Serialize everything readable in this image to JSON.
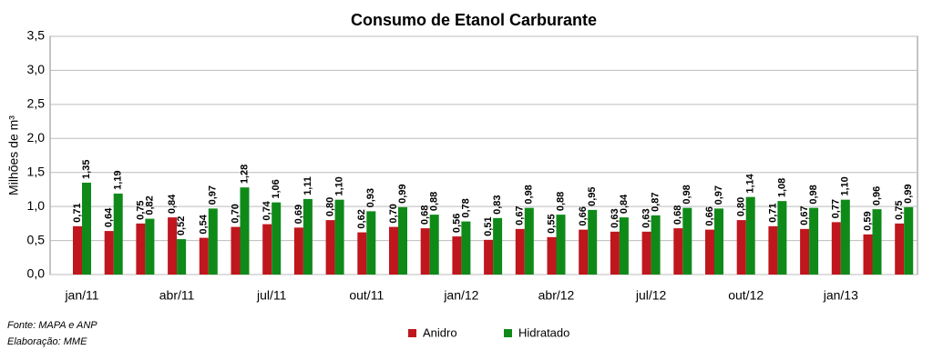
{
  "chart_data": {
    "type": "bar",
    "title": "Consumo de Etanol Carburante",
    "y_label": "Milhões de m³",
    "categories": [
      "jan/11",
      null,
      null,
      "abr/11",
      null,
      null,
      "jul/11",
      null,
      null,
      "out/11",
      null,
      null,
      "jan/12",
      null,
      null,
      "abr/12",
      null,
      null,
      "jul/12",
      null,
      null,
      "out/12",
      null,
      null,
      "jan/13",
      null,
      null
    ],
    "series": [
      {
        "name": "Anidro",
        "color": "#c0161d",
        "values": [
          0.71,
          0.64,
          0.75,
          0.84,
          0.54,
          0.7,
          0.74,
          0.69,
          0.8,
          0.62,
          0.7,
          0.68,
          0.56,
          0.51,
          0.67,
          0.55,
          0.66,
          0.63,
          0.63,
          0.68,
          0.66,
          0.8,
          0.71,
          0.67,
          0.77,
          0.59,
          0.75
        ],
        "value_labels": [
          "0,71",
          "0,64",
          "0,75",
          "0,84",
          "0,54",
          "0,70",
          "0,74",
          "0,69",
          "0,80",
          "0,62",
          "0,70",
          "0,68",
          "0,56",
          "0,51",
          "0,67",
          "0,55",
          "0,66",
          "0,63",
          "0,63",
          "0,68",
          "0,66",
          "0,80",
          "0,71",
          "0,67",
          "0,77",
          "0,59",
          "0,75"
        ]
      },
      {
        "name": "Hidratado",
        "color": "#0f8a19",
        "values": [
          1.35,
          1.19,
          0.82,
          0.52,
          0.97,
          1.28,
          1.06,
          1.11,
          1.1,
          0.93,
          0.99,
          0.88,
          0.78,
          0.83,
          0.98,
          0.88,
          0.95,
          0.84,
          0.87,
          0.98,
          0.97,
          1.14,
          1.08,
          0.98,
          1.1,
          0.96,
          0.99
        ],
        "value_labels": [
          "1,35",
          "1,19",
          "0,82",
          "0,52",
          "0,97",
          "1,28",
          "1,06",
          "1,11",
          "1,10",
          "0,93",
          "0,99",
          "0,88",
          "0,78",
          "0,83",
          "0,98",
          "0,88",
          "0,95",
          "0,84",
          "0,87",
          "0,98",
          "0,97",
          "1,14",
          "1,08",
          "0,98",
          "1,10",
          "0,96",
          "0,99"
        ]
      }
    ],
    "ylim": [
      0,
      3.5
    ],
    "yticks": [
      {
        "value": 0,
        "label": "0,0"
      },
      {
        "value": 0.5,
        "label": "0,5"
      },
      {
        "value": 1,
        "label": "1,0"
      },
      {
        "value": 1.5,
        "label": "1,5"
      },
      {
        "value": 2,
        "label": "2,0"
      },
      {
        "value": 2.5,
        "label": "2,5"
      },
      {
        "value": 3,
        "label": "3,0"
      },
      {
        "value": 3.5,
        "label": "3,5"
      }
    ],
    "grid": true,
    "legend": "bottom",
    "notes": [
      "Fonte: MAPA e ANP",
      "Elaboração: MME"
    ]
  }
}
